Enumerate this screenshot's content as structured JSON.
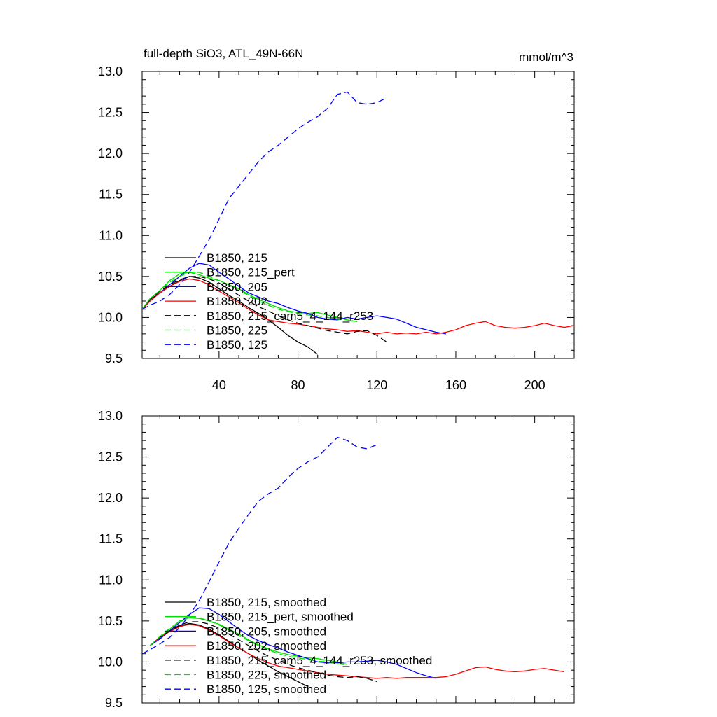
{
  "chart_data": [
    {
      "type": "line",
      "title": "full-depth SiO3, ATL_49N-66N",
      "units": "mmol/m^3",
      "xlim": [
        1,
        220
      ],
      "ylim": [
        9.5,
        13.0
      ],
      "x_ticks": [
        40,
        80,
        120,
        160,
        200
      ],
      "x_tick_labels": [
        "40",
        "80",
        "120",
        "160",
        "200"
      ],
      "y_ticks": [
        9.5,
        10.0,
        10.5,
        11.0,
        11.5,
        12.0,
        12.5,
        13.0
      ],
      "y_tick_labels": [
        "9.5",
        "10.0",
        "10.5",
        "11.0",
        "11.5",
        "12.0",
        "12.5",
        "13.0"
      ],
      "series": [
        {
          "name": "B1850, 215",
          "color": "#000000",
          "dash": "solid",
          "x": [
            1,
            5,
            10,
            15,
            20,
            25,
            30,
            35,
            40,
            45,
            50,
            55,
            60,
            65,
            70,
            75,
            80,
            85,
            90
          ],
          "y": [
            10.1,
            10.22,
            10.3,
            10.38,
            10.45,
            10.5,
            10.48,
            10.43,
            10.35,
            10.27,
            10.2,
            10.12,
            10.05,
            9.97,
            9.88,
            9.78,
            9.7,
            9.64,
            9.55
          ]
        },
        {
          "name": "B1850, 215_pert",
          "color": "#00e000",
          "dash": "solid",
          "x": [
            1,
            5,
            10,
            15,
            20,
            25,
            30,
            35,
            40,
            45,
            50,
            55,
            60,
            65,
            70,
            75,
            80,
            85,
            90,
            95,
            100,
            105,
            110
          ],
          "y": [
            10.1,
            10.23,
            10.33,
            10.45,
            10.53,
            10.55,
            10.52,
            10.48,
            10.45,
            10.4,
            10.35,
            10.28,
            10.22,
            10.17,
            10.12,
            10.08,
            10.06,
            10.05,
            10.06,
            10.03,
            10.0,
            9.97,
            9.95
          ]
        },
        {
          "name": "B1850, 205",
          "color": "#0000ff",
          "dash": "solid",
          "x": [
            1,
            5,
            10,
            15,
            20,
            25,
            30,
            35,
            40,
            45,
            50,
            55,
            60,
            65,
            70,
            75,
            80,
            85,
            90,
            95,
            100,
            105,
            110,
            115,
            120,
            125,
            130,
            135,
            140,
            145,
            150,
            155
          ],
          "y": [
            10.1,
            10.2,
            10.3,
            10.4,
            10.5,
            10.6,
            10.66,
            10.64,
            10.55,
            10.47,
            10.38,
            10.3,
            10.25,
            10.2,
            10.17,
            10.12,
            10.08,
            10.05,
            10.0,
            9.98,
            9.97,
            10.0,
            9.98,
            10.0,
            10.02,
            10.0,
            9.98,
            9.93,
            9.88,
            9.85,
            9.82,
            9.8
          ]
        },
        {
          "name": "B1850, 202",
          "color": "#ff0000",
          "dash": "solid",
          "x": [
            1,
            5,
            10,
            15,
            20,
            25,
            30,
            35,
            40,
            45,
            50,
            55,
            60,
            65,
            70,
            75,
            80,
            85,
            90,
            95,
            100,
            105,
            110,
            115,
            120,
            125,
            130,
            135,
            140,
            145,
            150,
            155,
            160,
            165,
            170,
            175,
            180,
            185,
            190,
            195,
            200,
            205,
            210,
            215,
            220
          ],
          "y": [
            10.1,
            10.2,
            10.3,
            10.38,
            10.44,
            10.47,
            10.45,
            10.4,
            10.32,
            10.25,
            10.18,
            10.1,
            10.03,
            9.97,
            9.95,
            9.93,
            9.92,
            9.9,
            9.88,
            9.86,
            9.85,
            9.83,
            9.84,
            9.82,
            9.8,
            9.82,
            9.8,
            9.81,
            9.8,
            9.82,
            9.8,
            9.82,
            9.85,
            9.9,
            9.93,
            9.95,
            9.9,
            9.88,
            9.87,
            9.88,
            9.9,
            9.93,
            9.9,
            9.88,
            9.9
          ]
        },
        {
          "name": "B1850, 215_cam5_4_144_r253",
          "color": "#000000",
          "dash": "dashed",
          "x": [
            1,
            5,
            10,
            15,
            20,
            25,
            30,
            35,
            40,
            45,
            50,
            55,
            60,
            65,
            70,
            75,
            80,
            85,
            90,
            95,
            100,
            105,
            110,
            115,
            120,
            125
          ],
          "y": [
            10.1,
            10.22,
            10.32,
            10.4,
            10.46,
            10.5,
            10.5,
            10.47,
            10.42,
            10.35,
            10.27,
            10.2,
            10.13,
            10.08,
            10.02,
            9.97,
            9.93,
            9.9,
            9.87,
            9.84,
            9.82,
            9.8,
            9.83,
            9.84,
            9.78,
            9.7
          ]
        },
        {
          "name": "B1850, 225",
          "color": "#00e000",
          "dash": "dashed",
          "x": [
            1,
            5,
            10,
            15,
            20,
            25,
            30,
            35,
            40,
            45,
            50,
            55,
            60,
            65,
            70,
            75,
            80,
            85,
            90,
            95,
            100,
            105,
            110
          ],
          "y": [
            10.1,
            10.23,
            10.33,
            10.43,
            10.5,
            10.55,
            10.55,
            10.5,
            10.45,
            10.4,
            10.33,
            10.27,
            10.2,
            10.15,
            10.1,
            10.07,
            10.05,
            10.03,
            10.02,
            10.0,
            9.98,
            9.97,
            9.95
          ]
        },
        {
          "name": "B1850, 125",
          "color": "#0000ff",
          "dash": "dashed",
          "x": [
            1,
            5,
            10,
            15,
            20,
            25,
            30,
            35,
            40,
            45,
            50,
            55,
            60,
            65,
            70,
            75,
            80,
            85,
            90,
            95,
            100,
            105,
            110,
            115,
            120,
            125
          ],
          "y": [
            10.1,
            10.15,
            10.2,
            10.28,
            10.4,
            10.55,
            10.75,
            10.95,
            11.2,
            11.45,
            11.6,
            11.75,
            11.9,
            12.02,
            12.1,
            12.2,
            12.3,
            12.38,
            12.45,
            12.55,
            12.72,
            12.75,
            12.62,
            12.6,
            12.62,
            12.68
          ]
        }
      ]
    },
    {
      "type": "line",
      "xlim": [
        1,
        220
      ],
      "ylim": [
        9.5,
        13.0
      ],
      "x_ticks": [
        40,
        80,
        120,
        160,
        200
      ],
      "y_ticks": [
        9.5,
        10.0,
        10.5,
        11.0,
        11.5,
        12.0,
        12.5,
        13.0
      ],
      "y_tick_labels": [
        "9.5",
        "10.0",
        "10.5",
        "11.0",
        "11.5",
        "12.0",
        "12.5",
        "13.0"
      ],
      "series": [
        {
          "name": "B1850, 215, smoothed",
          "color": "#000000",
          "dash": "solid",
          "x": [
            5,
            10,
            15,
            20,
            25,
            30,
            35,
            40,
            45,
            50,
            55,
            60,
            65,
            70,
            75,
            80,
            85
          ],
          "y": [
            10.2,
            10.3,
            10.38,
            10.44,
            10.47,
            10.45,
            10.4,
            10.33,
            10.25,
            10.17,
            10.1,
            10.02,
            9.95,
            9.88,
            9.82,
            9.76,
            9.7
          ]
        },
        {
          "name": "B1850, 215_pert, smoothed",
          "color": "#00e000",
          "dash": "solid",
          "x": [
            5,
            10,
            15,
            20,
            25,
            30,
            35,
            40,
            45,
            50,
            55,
            60,
            65,
            70,
            75,
            80,
            85,
            90,
            95,
            100,
            105
          ],
          "y": [
            10.2,
            10.3,
            10.4,
            10.5,
            10.54,
            10.53,
            10.5,
            10.46,
            10.4,
            10.34,
            10.27,
            10.21,
            10.16,
            10.12,
            10.09,
            10.07,
            10.05,
            10.04,
            10.02,
            10.0,
            9.97
          ]
        },
        {
          "name": "B1850, 205, smoothed",
          "color": "#0000ff",
          "dash": "solid",
          "x": [
            5,
            10,
            15,
            20,
            25,
            30,
            35,
            40,
            45,
            50,
            55,
            60,
            65,
            70,
            75,
            80,
            85,
            90,
            95,
            100,
            105,
            110,
            115,
            120,
            125,
            130,
            135,
            140,
            145,
            150
          ],
          "y": [
            10.2,
            10.28,
            10.38,
            10.48,
            10.58,
            10.66,
            10.65,
            10.58,
            10.49,
            10.4,
            10.32,
            10.26,
            10.21,
            10.17,
            10.12,
            10.08,
            10.04,
            10.0,
            9.99,
            9.99,
            10.0,
            10.0,
            10.01,
            10.02,
            10.0,
            9.97,
            9.92,
            9.87,
            9.83,
            9.8
          ]
        },
        {
          "name": "B1850, 202, smoothed",
          "color": "#ff0000",
          "dash": "solid",
          "x": [
            5,
            10,
            15,
            20,
            25,
            30,
            35,
            40,
            45,
            50,
            55,
            60,
            65,
            70,
            75,
            80,
            85,
            90,
            95,
            100,
            105,
            110,
            115,
            120,
            125,
            130,
            135,
            140,
            145,
            150,
            155,
            160,
            165,
            170,
            175,
            180,
            185,
            190,
            195,
            200,
            205,
            210,
            215
          ],
          "y": [
            10.2,
            10.3,
            10.37,
            10.43,
            10.46,
            10.44,
            10.39,
            10.32,
            10.24,
            10.17,
            10.1,
            10.04,
            9.99,
            9.95,
            9.93,
            9.91,
            9.89,
            9.87,
            9.85,
            9.84,
            9.83,
            9.82,
            9.81,
            9.8,
            9.81,
            9.8,
            9.81,
            9.81,
            9.81,
            9.81,
            9.82,
            9.85,
            9.89,
            9.93,
            9.94,
            9.91,
            9.89,
            9.88,
            9.89,
            9.91,
            9.92,
            9.9,
            9.88
          ]
        },
        {
          "name": "B1850, 215_cam5_4_144_r253, smoothed",
          "color": "#000000",
          "dash": "dashed",
          "x": [
            5,
            10,
            15,
            20,
            25,
            30,
            35,
            40,
            45,
            50,
            55,
            60,
            65,
            70,
            75,
            80,
            85,
            90,
            95,
            100,
            105,
            110,
            115,
            120
          ],
          "y": [
            10.2,
            10.3,
            10.38,
            10.45,
            10.49,
            10.49,
            10.46,
            10.41,
            10.34,
            10.27,
            10.2,
            10.13,
            10.07,
            10.02,
            9.97,
            9.93,
            9.9,
            9.87,
            9.84,
            9.82,
            9.81,
            9.82,
            9.8,
            9.76
          ]
        },
        {
          "name": "B1850, 225, smoothed",
          "color": "#00e000",
          "dash": "dashed",
          "x": [
            5,
            10,
            15,
            20,
            25,
            30,
            35,
            40,
            45,
            50,
            55,
            60,
            65,
            70,
            75,
            80,
            85,
            90,
            95,
            100,
            105
          ],
          "y": [
            10.2,
            10.31,
            10.41,
            10.49,
            10.54,
            10.54,
            10.5,
            10.45,
            10.39,
            10.32,
            10.26,
            10.2,
            10.15,
            10.1,
            10.07,
            10.05,
            10.03,
            10.01,
            10.0,
            9.98,
            9.96
          ]
        },
        {
          "name": "B1850, 125, smoothed",
          "color": "#0000ff",
          "dash": "dashed",
          "x": [
            1,
            5,
            10,
            15,
            20,
            25,
            30,
            35,
            40,
            45,
            50,
            55,
            60,
            65,
            70,
            75,
            80,
            85,
            90,
            95,
            100,
            105,
            110,
            115,
            120
          ],
          "y": [
            10.1,
            10.15,
            10.22,
            10.3,
            10.42,
            10.57,
            10.75,
            10.98,
            11.22,
            11.45,
            11.63,
            11.8,
            11.96,
            12.05,
            12.12,
            12.25,
            12.36,
            12.44,
            12.5,
            12.62,
            12.74,
            12.7,
            12.62,
            12.6,
            12.65
          ]
        }
      ]
    }
  ]
}
